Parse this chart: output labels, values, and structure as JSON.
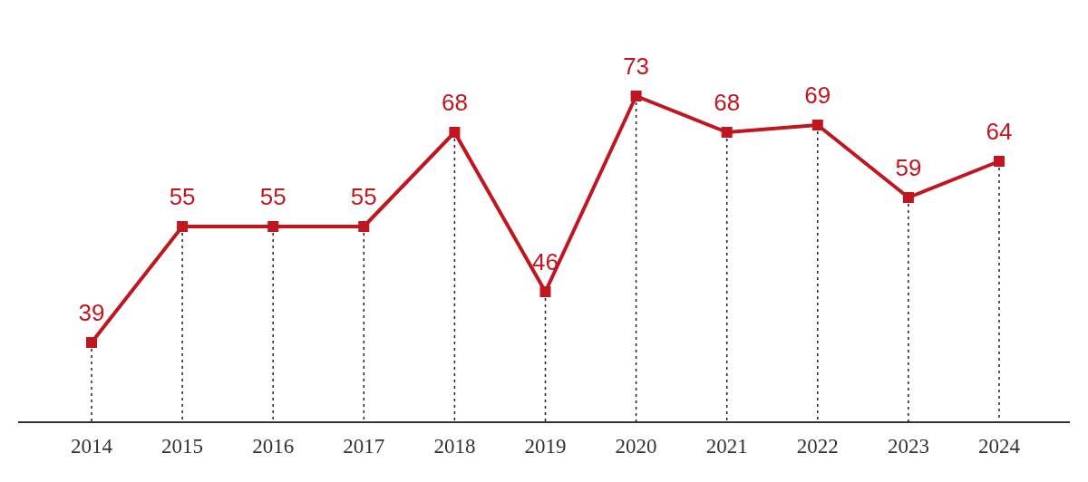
{
  "chart_data": {
    "type": "line",
    "categories": [
      "2014",
      "2015",
      "2016",
      "2017",
      "2018",
      "2019",
      "2020",
      "2021",
      "2022",
      "2023",
      "2024"
    ],
    "series": [
      {
        "color": "#c0161f",
        "values": [
          39,
          55,
          55,
          55,
          68,
          46,
          73,
          68,
          69,
          59,
          64
        ]
      }
    ],
    "data_labels": true,
    "marker": "square",
    "line_style": "solid",
    "grid": "x"
  }
}
